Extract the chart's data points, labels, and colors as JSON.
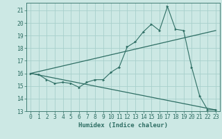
{
  "xlabel": "Humidex (Indice chaleur)",
  "background_color": "#cce8e4",
  "grid_color": "#a8d0cb",
  "line_color": "#2e6e64",
  "xlim": [
    -0.5,
    23.5
  ],
  "ylim": [
    13,
    21.6
  ],
  "yticks": [
    13,
    14,
    15,
    16,
    17,
    18,
    19,
    20,
    21
  ],
  "xticks": [
    0,
    1,
    2,
    3,
    4,
    5,
    6,
    7,
    8,
    9,
    10,
    11,
    12,
    13,
    14,
    15,
    16,
    17,
    18,
    19,
    20,
    21,
    22,
    23
  ],
  "series1_x": [
    0,
    1,
    2,
    3,
    4,
    5,
    6,
    7,
    8,
    9,
    10,
    11,
    12,
    13,
    14,
    15,
    16,
    17,
    18,
    19,
    20,
    21,
    22,
    23
  ],
  "series1_y": [
    16.0,
    15.9,
    15.5,
    15.2,
    15.3,
    15.2,
    14.9,
    15.3,
    15.5,
    15.5,
    16.1,
    16.5,
    18.1,
    18.5,
    19.3,
    19.9,
    19.4,
    21.3,
    19.5,
    19.4,
    16.5,
    14.2,
    13.1,
    13.1
  ],
  "series2_x": [
    0,
    23
  ],
  "series2_y": [
    16.0,
    13.1
  ],
  "series3_x": [
    0,
    23
  ],
  "series3_y": [
    16.0,
    19.4
  ],
  "font_size_label": 6.5,
  "font_size_tick": 5.8
}
